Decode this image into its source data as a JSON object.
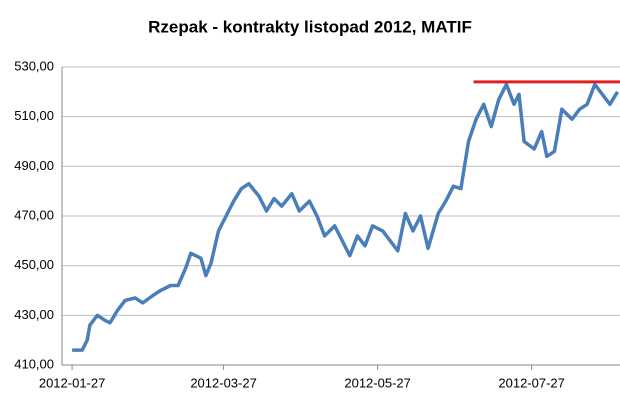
{
  "chart_data": {
    "type": "line",
    "title": "Rzepak - kontrakty listopad 2012, MATIF",
    "x": [
      "2012-01-27",
      "2012-01-31",
      "2012-02-02",
      "2012-02-03",
      "2012-02-06",
      "2012-02-09",
      "2012-02-11",
      "2012-02-14",
      "2012-02-17",
      "2012-02-21",
      "2012-02-24",
      "2012-02-28",
      "2012-03-02",
      "2012-03-06",
      "2012-03-09",
      "2012-03-12",
      "2012-03-14",
      "2012-03-18",
      "2012-03-20",
      "2012-03-22",
      "2012-03-25",
      "2012-03-28",
      "2012-03-31",
      "2012-04-03",
      "2012-04-06",
      "2012-04-10",
      "2012-04-13",
      "2012-04-16",
      "2012-04-19",
      "2012-04-23",
      "2012-04-26",
      "2012-04-30",
      "2012-05-03",
      "2012-05-06",
      "2012-05-10",
      "2012-05-13",
      "2012-05-16",
      "2012-05-19",
      "2012-05-22",
      "2012-05-25",
      "2012-05-29",
      "2012-06-01",
      "2012-06-04",
      "2012-06-07",
      "2012-06-10",
      "2012-06-13",
      "2012-06-16",
      "2012-06-20",
      "2012-06-23",
      "2012-06-26",
      "2012-06-29",
      "2012-07-02",
      "2012-07-05",
      "2012-07-08",
      "2012-07-11",
      "2012-07-14",
      "2012-07-17",
      "2012-07-20",
      "2012-07-22",
      "2012-07-24",
      "2012-07-28",
      "2012-07-31",
      "2012-08-02",
      "2012-08-05",
      "2012-08-08",
      "2012-08-12",
      "2012-08-15",
      "2012-08-18",
      "2012-08-21",
      "2012-08-24",
      "2012-08-27",
      "2012-08-30"
    ],
    "series": [
      {
        "color": "#4a7ebb",
        "values": [
          416,
          416,
          420,
          426,
          430,
          428,
          427,
          432,
          436,
          437,
          435,
          438,
          440,
          442,
          442,
          449,
          455,
          453,
          446,
          451,
          464,
          470,
          476,
          481,
          483,
          478,
          472,
          477,
          474,
          479,
          472,
          476,
          470,
          462,
          466,
          460,
          454,
          462,
          458,
          466,
          464,
          460,
          456,
          471,
          464,
          470,
          457,
          471,
          476,
          482,
          481,
          500,
          509,
          515,
          506,
          517,
          523,
          515,
          519,
          500,
          497,
          504,
          494,
          496,
          513,
          509,
          513,
          515,
          523,
          519,
          515,
          520
        ]
      }
    ],
    "hline": {
      "value": 524,
      "x": [
        "2012-07-04",
        "2012-08-31"
      ],
      "color": "#e02020"
    },
    "xlim": [
      "2012-01-23",
      "2012-08-31"
    ],
    "xticks": [
      "2012-01-27",
      "2012-03-27",
      "2012-05-27",
      "2012-07-27"
    ],
    "ylim": [
      410,
      530
    ],
    "yticks": [
      {
        "value": 410,
        "label": "410,00"
      },
      {
        "value": 430,
        "label": "430,00"
      },
      {
        "value": 450,
        "label": "450,00"
      },
      {
        "value": 470,
        "label": "470,00"
      },
      {
        "value": 490,
        "label": "490,00"
      },
      {
        "value": 510,
        "label": "510,00"
      },
      {
        "value": 530,
        "label": "530,00"
      }
    ],
    "grid": true
  }
}
